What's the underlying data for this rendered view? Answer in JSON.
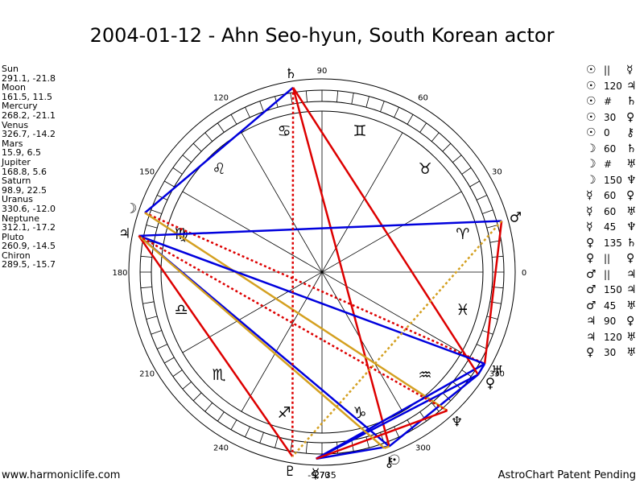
{
  "header": {
    "title": "2004-01-12 - Ahn Seo-hyun, South Korean actor"
  },
  "planets": [
    {
      "name": "Sun",
      "position": "291.1, -21.8"
    },
    {
      "name": "Moon",
      "position": "161.5, 11.5"
    },
    {
      "name": "Mercury",
      "position": "268.2, -21.1"
    },
    {
      "name": "Venus",
      "position": "326.7, -14.2"
    },
    {
      "name": "Mars",
      "position": "15.9, 6.5"
    },
    {
      "name": "Jupiter",
      "position": "168.8, 5.6"
    },
    {
      "name": "Saturn",
      "position": "98.9, 22.5"
    },
    {
      "name": "Uranus",
      "position": "330.6, -12.0"
    },
    {
      "name": "Neptune",
      "position": "312.1, -17.2"
    },
    {
      "name": "Pluto",
      "position": "260.9, -14.5"
    },
    {
      "name": "Chiron",
      "position": "289.5, -15.7"
    }
  ],
  "aspects": [
    {
      "p1": "☉",
      "aspect": "||",
      "p2": "☿"
    },
    {
      "p1": "☉",
      "aspect": "120",
      "p2": "♃"
    },
    {
      "p1": "☉",
      "aspect": "#",
      "p2": "♄"
    },
    {
      "p1": "☉",
      "aspect": "30",
      "p2": "♀"
    },
    {
      "p1": "☉",
      "aspect": "0",
      "p2": "⚷"
    },
    {
      "p1": "☽",
      "aspect": "60",
      "p2": "♄"
    },
    {
      "p1": "☽",
      "aspect": "#",
      "p2": "♅"
    },
    {
      "p1": "☽",
      "aspect": "150",
      "p2": "♆"
    },
    {
      "p1": "☿",
      "aspect": "60",
      "p2": "♀"
    },
    {
      "p1": "☿",
      "aspect": "60",
      "p2": "♅"
    },
    {
      "p1": "☿",
      "aspect": "45",
      "p2": "♆"
    },
    {
      "p1": "♀",
      "aspect": "135",
      "p2": "♄"
    },
    {
      "p1": "♀",
      "aspect": "||",
      "p2": "♀"
    },
    {
      "p1": "♂",
      "aspect": "||",
      "p2": "♃"
    },
    {
      "p1": "♂",
      "aspect": "150",
      "p2": "♃"
    },
    {
      "p1": "♂",
      "aspect": "45",
      "p2": "♅"
    },
    {
      "p1": "♃",
      "aspect": "90",
      "p2": "♀"
    },
    {
      "p1": "♃",
      "aspect": "120",
      "p2": "♅"
    },
    {
      "p1": "♀",
      "aspect": "30",
      "p2": "♅"
    }
  ],
  "footer": {
    "left": "www.harmoniclife.com",
    "right": "AstroChart Patent Pending"
  },
  "chart_data": {
    "type": "polar-wheel",
    "title": "2004-01-12 - Ahn Seo-hyun, South Korean actor",
    "degree_labels": [
      "0",
      "30",
      "60",
      "90",
      "120",
      "150",
      "180",
      "210",
      "240",
      "270",
      "300",
      "330"
    ],
    "center_readout": "-9,735",
    "signs": [
      {
        "name": "Aries",
        "glyph": "♈",
        "longitude": 15
      },
      {
        "name": "Taurus",
        "glyph": "♉",
        "longitude": 45
      },
      {
        "name": "Gemini",
        "glyph": "♊",
        "longitude": 75
      },
      {
        "name": "Cancer",
        "glyph": "♋",
        "longitude": 105
      },
      {
        "name": "Leo",
        "glyph": "♌",
        "longitude": 135
      },
      {
        "name": "Virgo",
        "glyph": "♍",
        "longitude": 165
      },
      {
        "name": "Libra",
        "glyph": "♎",
        "longitude": 195
      },
      {
        "name": "Scorpio",
        "glyph": "♏",
        "longitude": 225
      },
      {
        "name": "Sagittarius",
        "glyph": "♐",
        "longitude": 255
      },
      {
        "name": "Capricorn",
        "glyph": "♑",
        "longitude": 285
      },
      {
        "name": "Aquarius",
        "glyph": "♒",
        "longitude": 315
      },
      {
        "name": "Pisces",
        "glyph": "♓",
        "longitude": 345
      }
    ],
    "points": [
      {
        "name": "Sun",
        "glyph": "☉",
        "longitude": 291.1
      },
      {
        "name": "Moon",
        "glyph": "☽",
        "longitude": 161.5
      },
      {
        "name": "Mercury",
        "glyph": "☿",
        "longitude": 268.2
      },
      {
        "name": "Venus",
        "glyph": "♀",
        "longitude": 326.7
      },
      {
        "name": "Mars",
        "glyph": "♂",
        "longitude": 15.9
      },
      {
        "name": "Jupiter",
        "glyph": "♃",
        "longitude": 168.8
      },
      {
        "name": "Saturn",
        "glyph": "♄",
        "longitude": 98.9
      },
      {
        "name": "Uranus",
        "glyph": "♅",
        "longitude": 330.6
      },
      {
        "name": "Neptune",
        "glyph": "♆",
        "longitude": 312.1
      },
      {
        "name": "Pluto",
        "glyph": "♇",
        "longitude": 260.9
      },
      {
        "name": "Chiron",
        "glyph": "⚷",
        "longitude": 289.5
      }
    ],
    "aspect_lines": [
      {
        "a": "Sun",
        "b": "Mercury",
        "color": "#0000dd",
        "style": "solid"
      },
      {
        "a": "Sun",
        "b": "Jupiter",
        "color": "#0000dd",
        "style": "solid"
      },
      {
        "a": "Sun",
        "b": "Saturn",
        "color": "#dd0000",
        "style": "solid"
      },
      {
        "a": "Sun",
        "b": "Venus",
        "color": "#0000dd",
        "style": "solid"
      },
      {
        "a": "Sun",
        "b": "Chiron",
        "color": "#d4a020",
        "style": "solid"
      },
      {
        "a": "Moon",
        "b": "Saturn",
        "color": "#0000dd",
        "style": "solid"
      },
      {
        "a": "Moon",
        "b": "Uranus",
        "color": "#dd0000",
        "style": "dotted"
      },
      {
        "a": "Moon",
        "b": "Neptune",
        "color": "#d4a020",
        "style": "solid"
      },
      {
        "a": "Mercury",
        "b": "Venus",
        "color": "#0000dd",
        "style": "solid"
      },
      {
        "a": "Mercury",
        "b": "Uranus",
        "color": "#0000dd",
        "style": "solid"
      },
      {
        "a": "Mercury",
        "b": "Neptune",
        "color": "#dd0000",
        "style": "solid"
      },
      {
        "a": "Venus",
        "b": "Saturn",
        "color": "#dd0000",
        "style": "solid"
      },
      {
        "a": "Mars",
        "b": "Jupiter",
        "color": "#0000dd",
        "style": "solid"
      },
      {
        "a": "Mars",
        "b": "Uranus",
        "color": "#dd0000",
        "style": "solid"
      },
      {
        "a": "Jupiter",
        "b": "Pluto",
        "color": "#dd0000",
        "style": "solid"
      },
      {
        "a": "Jupiter",
        "b": "Uranus",
        "color": "#0000dd",
        "style": "solid"
      },
      {
        "a": "Jupiter",
        "b": "Chiron",
        "color": "#d4a020",
        "style": "solid"
      },
      {
        "a": "Venus",
        "b": "Uranus",
        "color": "#0000dd",
        "style": "solid"
      },
      {
        "a": "Saturn",
        "b": "Pluto",
        "color": "#dd0000",
        "style": "dotted"
      },
      {
        "a": "Mars",
        "b": "Pluto",
        "color": "#d4a020",
        "style": "dotted"
      },
      {
        "a": "Jupiter",
        "b": "Neptune",
        "color": "#dd0000",
        "style": "dotted"
      }
    ]
  }
}
